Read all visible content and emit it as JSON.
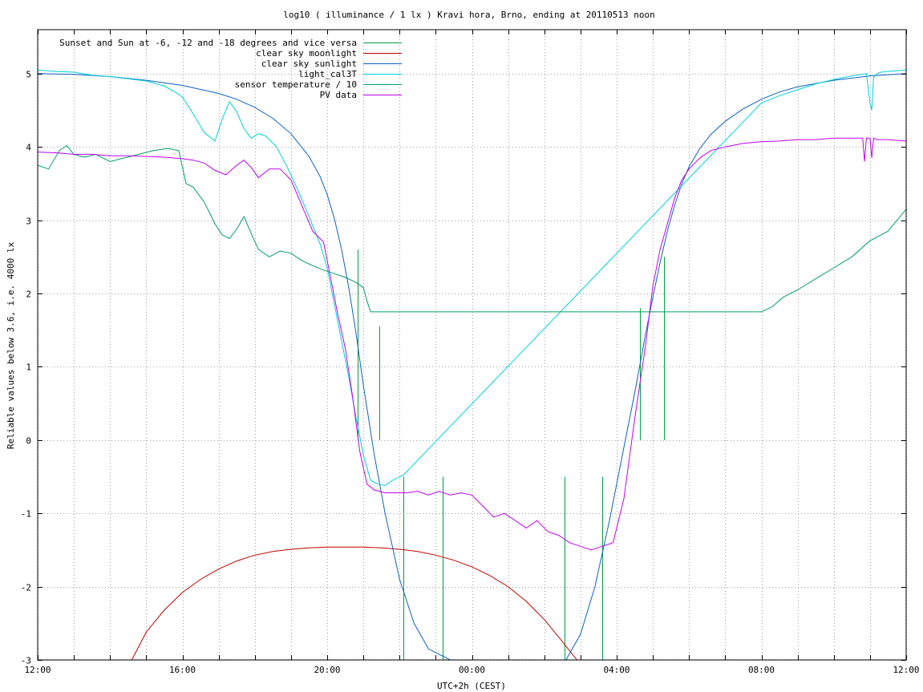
{
  "chart_data": {
    "type": "line",
    "title": "log10 ( illuminance / 1 lx ) Kravi hora, Brno, ending at 20110513 noon",
    "xlabel": "UTC+2h (CEST)",
    "ylabel": "Reliable values below 3.6, i.e. 4000 lx",
    "xlim": [
      12,
      36
    ],
    "ylim": [
      -3,
      5.6
    ],
    "x_ticks": [
      {
        "x": 12,
        "label": "12:00"
      },
      {
        "x": 16,
        "label": "16:00"
      },
      {
        "x": 20,
        "label": "20:00"
      },
      {
        "x": 24,
        "label": "00:00"
      },
      {
        "x": 28,
        "label": "04:00"
      },
      {
        "x": 32,
        "label": "08:00"
      },
      {
        "x": 36,
        "label": "12:00"
      }
    ],
    "x_minor_grid": [
      13,
      14,
      15,
      17,
      18,
      19,
      21,
      22,
      23,
      25,
      26,
      27,
      29,
      30,
      31,
      33,
      34,
      35
    ],
    "y_ticks": [
      {
        "y": 5,
        "label": "5"
      },
      {
        "y": 4,
        "label": "4"
      },
      {
        "y": 3,
        "label": "3"
      },
      {
        "y": 2,
        "label": "2"
      },
      {
        "y": 1,
        "label": "1"
      },
      {
        "y": 0,
        "label": "0"
      },
      {
        "y": -1,
        "label": "-1"
      },
      {
        "y": -2,
        "label": "-2"
      },
      {
        "y": -3,
        "label": "-3"
      }
    ],
    "grid": true,
    "legend_position": "top-left",
    "series": [
      {
        "name": "Sunset and Sun at -6, -12 and -18 degrees and vice versa",
        "color": "#00a040",
        "style": "impulses",
        "x": [
          20.85,
          21.45,
          22.1,
          23.2,
          26.55,
          27.6,
          28.65,
          29.3
        ],
        "y": [
          0,
          0,
          -3,
          -3,
          -3,
          -3,
          0,
          0
        ],
        "tops": [
          2.6,
          1.55,
          -0.5,
          -0.5,
          -0.5,
          -0.5,
          1.8,
          2.5
        ]
      },
      {
        "name": "clear sky moonlight",
        "color": "#c00000",
        "x": [
          14.6,
          15.0,
          15.5,
          16.0,
          16.5,
          17.0,
          17.5,
          18.0,
          18.5,
          19.0,
          19.5,
          20.0,
          20.5,
          21.0,
          21.5,
          22.0,
          22.5,
          23.0,
          23.5,
          24.0,
          24.5,
          25.0,
          25.5,
          26.0,
          26.5,
          26.9
        ],
        "y": [
          -3.0,
          -2.62,
          -2.32,
          -2.08,
          -1.9,
          -1.76,
          -1.65,
          -1.57,
          -1.52,
          -1.49,
          -1.47,
          -1.46,
          -1.46,
          -1.46,
          -1.47,
          -1.49,
          -1.52,
          -1.57,
          -1.64,
          -1.73,
          -1.85,
          -2.0,
          -2.2,
          -2.45,
          -2.75,
          -3.0
        ]
      },
      {
        "name": "clear sky sunlight",
        "color": "#1060c0",
        "x": [
          12.0,
          13.0,
          14.0,
          15.0,
          16.0,
          17.0,
          17.5,
          18.0,
          18.5,
          19.0,
          19.5,
          19.8,
          20.0,
          20.2,
          20.4,
          20.6,
          20.8,
          21.0,
          21.3,
          21.6,
          22.0,
          22.4,
          22.8,
          23.4,
          26.6,
          27.0,
          27.4,
          27.8,
          28.2,
          28.5,
          28.8,
          29.0,
          29.2,
          29.4,
          29.6,
          29.8,
          30.0,
          30.3,
          30.6,
          31.0,
          31.5,
          32.0,
          32.5,
          33.0,
          34.0,
          35.0,
          36.0
        ],
        "y": [
          5.0,
          4.99,
          4.96,
          4.91,
          4.84,
          4.73,
          4.65,
          4.54,
          4.39,
          4.18,
          3.87,
          3.6,
          3.35,
          3.02,
          2.6,
          2.07,
          1.45,
          0.75,
          -0.2,
          -1.0,
          -1.9,
          -2.5,
          -2.85,
          -3.0,
          -3.0,
          -2.65,
          -2.0,
          -1.1,
          -0.1,
          0.65,
          1.45,
          1.95,
          2.42,
          2.85,
          3.2,
          3.5,
          3.73,
          3.98,
          4.17,
          4.35,
          4.52,
          4.65,
          4.75,
          4.82,
          4.91,
          4.97,
          5.0
        ]
      },
      {
        "name": "light_cal3T",
        "color": "#00d0d8",
        "x": [
          12.0,
          12.5,
          13.0,
          13.5,
          14.0,
          14.5,
          15.0,
          15.5,
          15.8,
          16.0,
          16.3,
          16.6,
          16.9,
          17.1,
          17.3,
          17.5,
          17.7,
          17.9,
          18.1,
          18.3,
          18.6,
          18.9,
          19.2,
          19.5,
          19.8,
          20.0,
          20.2,
          20.4,
          20.6,
          20.8,
          21.0,
          21.2,
          21.4,
          21.6,
          21.8,
          22.1,
          32.0,
          32.5,
          33.0,
          33.5,
          34.0,
          34.5,
          34.9,
          35.0,
          35.05,
          35.1,
          35.2,
          35.3,
          35.5,
          36.0
        ],
        "y": [
          5.05,
          5.03,
          5.02,
          4.98,
          4.96,
          4.93,
          4.9,
          4.83,
          4.75,
          4.68,
          4.45,
          4.2,
          4.08,
          4.38,
          4.62,
          4.48,
          4.25,
          4.12,
          4.18,
          4.15,
          4.0,
          3.72,
          3.4,
          3.05,
          2.68,
          2.35,
          1.85,
          1.35,
          0.85,
          0.3,
          -0.2,
          -0.55,
          -0.6,
          -0.62,
          -0.55,
          -0.48,
          4.6,
          4.7,
          4.78,
          4.86,
          4.92,
          4.97,
          5.0,
          4.6,
          4.5,
          4.95,
          5.0,
          5.02,
          5.03,
          5.05
        ]
      },
      {
        "name": "sensor temperature / 10",
        "color": "#00a060",
        "x": [
          12.0,
          12.3,
          12.6,
          12.8,
          13.0,
          13.3,
          13.6,
          14.0,
          14.4,
          14.8,
          15.2,
          15.6,
          15.9,
          16.1,
          16.3,
          16.6,
          16.9,
          17.1,
          17.3,
          17.5,
          17.7,
          17.9,
          18.1,
          18.4,
          18.7,
          19.0,
          19.3,
          19.6,
          19.9,
          20.2,
          20.5,
          20.8,
          21.0,
          21.1,
          21.2,
          32.0,
          32.3,
          32.6,
          33.0,
          33.5,
          34.0,
          34.5,
          35.0,
          35.5,
          36.0
        ],
        "y": [
          3.75,
          3.7,
          3.95,
          4.02,
          3.9,
          3.86,
          3.9,
          3.8,
          3.85,
          3.9,
          3.95,
          3.98,
          3.95,
          3.5,
          3.45,
          3.25,
          2.95,
          2.8,
          2.75,
          2.88,
          3.05,
          2.82,
          2.6,
          2.5,
          2.58,
          2.55,
          2.45,
          2.38,
          2.32,
          2.27,
          2.22,
          2.15,
          2.08,
          1.9,
          1.75,
          1.75,
          1.82,
          1.95,
          2.05,
          2.2,
          2.35,
          2.5,
          2.72,
          2.85,
          3.15
        ]
      },
      {
        "name": "PV data",
        "color": "#c000f0",
        "x": [
          12.0,
          12.5,
          13.0,
          13.5,
          14.0,
          14.5,
          15.0,
          15.5,
          16.0,
          16.3,
          16.6,
          16.9,
          17.2,
          17.5,
          17.7,
          17.9,
          18.1,
          18.4,
          18.7,
          19.0,
          19.3,
          19.6,
          19.9,
          20.1,
          20.3,
          20.5,
          20.7,
          20.9,
          21.1,
          21.3,
          21.6,
          21.9,
          22.2,
          22.5,
          22.8,
          23.1,
          23.4,
          23.7,
          24.0,
          24.3,
          24.6,
          24.9,
          25.2,
          25.5,
          25.8,
          26.1,
          26.4,
          26.7,
          27.0,
          27.3,
          27.6,
          27.9,
          28.2,
          28.5,
          28.8,
          29.0,
          29.2,
          29.4,
          29.6,
          29.8,
          30.0,
          30.3,
          30.6,
          31.0,
          31.5,
          32.0,
          32.5,
          33.0,
          33.5,
          34.0,
          34.5,
          34.8,
          34.85,
          34.9,
          35.0,
          35.05,
          35.1,
          35.2,
          35.5,
          36.0
        ],
        "y": [
          3.93,
          3.92,
          3.9,
          3.9,
          3.88,
          3.88,
          3.87,
          3.86,
          3.84,
          3.82,
          3.78,
          3.68,
          3.62,
          3.75,
          3.82,
          3.72,
          3.58,
          3.7,
          3.7,
          3.55,
          3.2,
          2.85,
          2.7,
          2.2,
          1.7,
          1.25,
          0.6,
          -0.15,
          -0.6,
          -0.68,
          -0.72,
          -0.72,
          -0.72,
          -0.7,
          -0.75,
          -0.7,
          -0.75,
          -0.72,
          -0.75,
          -0.9,
          -1.05,
          -1.0,
          -1.1,
          -1.2,
          -1.1,
          -1.25,
          -1.3,
          -1.4,
          -1.45,
          -1.5,
          -1.45,
          -1.4,
          -0.8,
          0.3,
          1.3,
          2.1,
          2.6,
          2.95,
          3.3,
          3.55,
          3.7,
          3.85,
          3.95,
          4.0,
          4.05,
          4.07,
          4.08,
          4.1,
          4.1,
          4.12,
          4.12,
          4.12,
          3.8,
          4.12,
          4.12,
          3.85,
          4.12,
          4.1,
          4.1,
          4.08
        ]
      }
    ]
  }
}
